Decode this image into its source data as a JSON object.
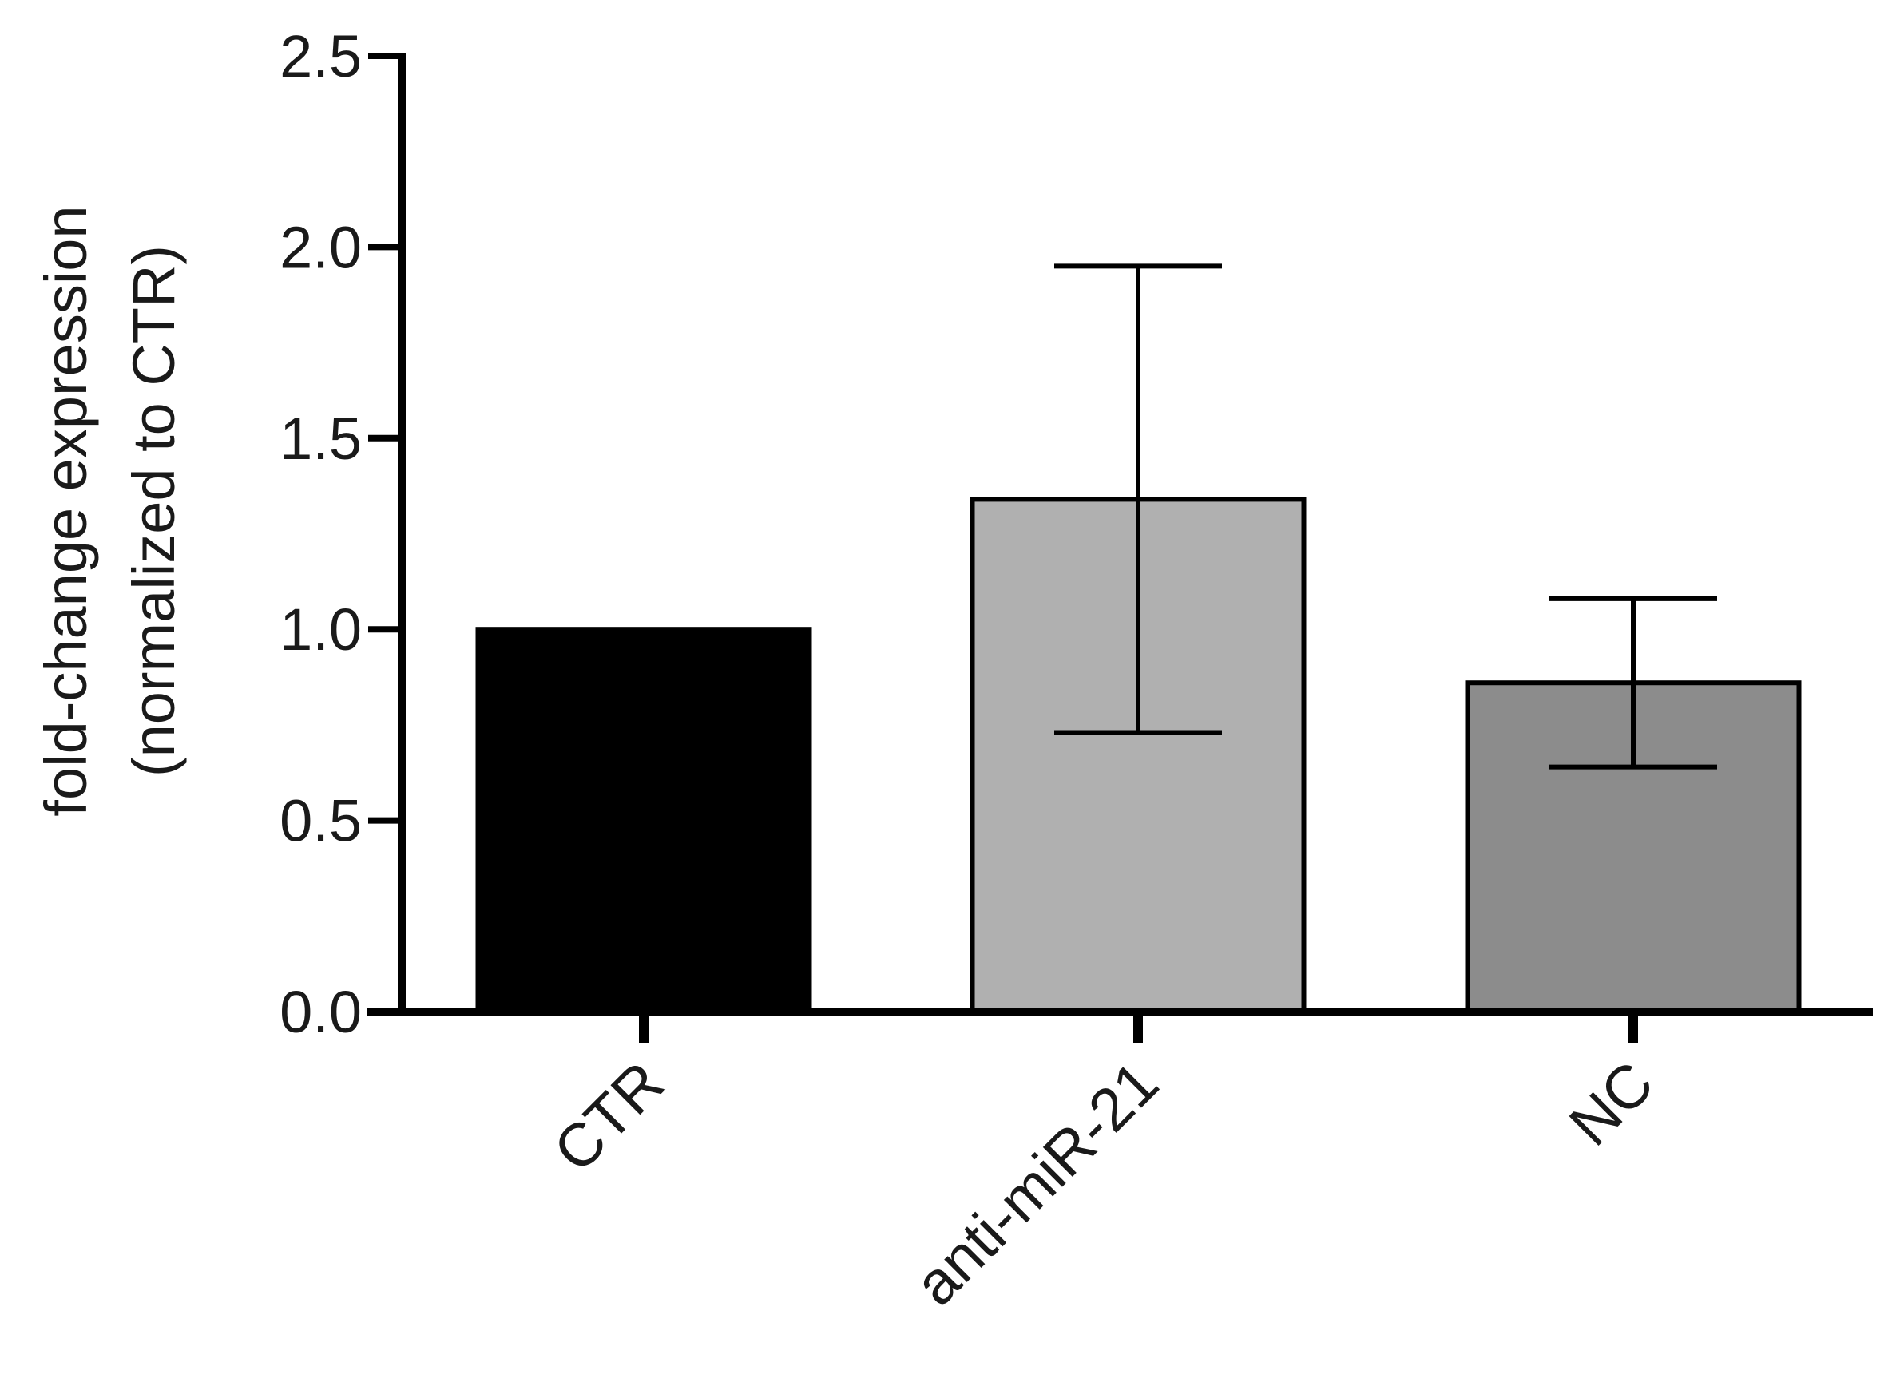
{
  "chart_data": {
    "type": "bar",
    "title": "",
    "xlabel": "",
    "ylabel_line1": "fold-change expression",
    "ylabel_line2": "(normalized to CTR)",
    "categories": [
      "CTR",
      "anti-miR-21",
      "NC"
    ],
    "values": [
      1.0,
      1.34,
      0.86
    ],
    "error_low": [
      null,
      0.73,
      0.64
    ],
    "error_high": [
      null,
      1.95,
      1.08
    ],
    "bar_colors": [
      "#000000",
      "#b0b0b0",
      "#8c8c8c"
    ],
    "ylim": [
      0,
      2.5
    ],
    "yticks": [
      0.0,
      0.5,
      1.0,
      1.5,
      2.0,
      2.5
    ],
    "ytick_labels": [
      "0.0",
      "0.5",
      "1.0",
      "1.5",
      "2.0",
      "2.5"
    ],
    "grid": false,
    "legend": "none"
  }
}
